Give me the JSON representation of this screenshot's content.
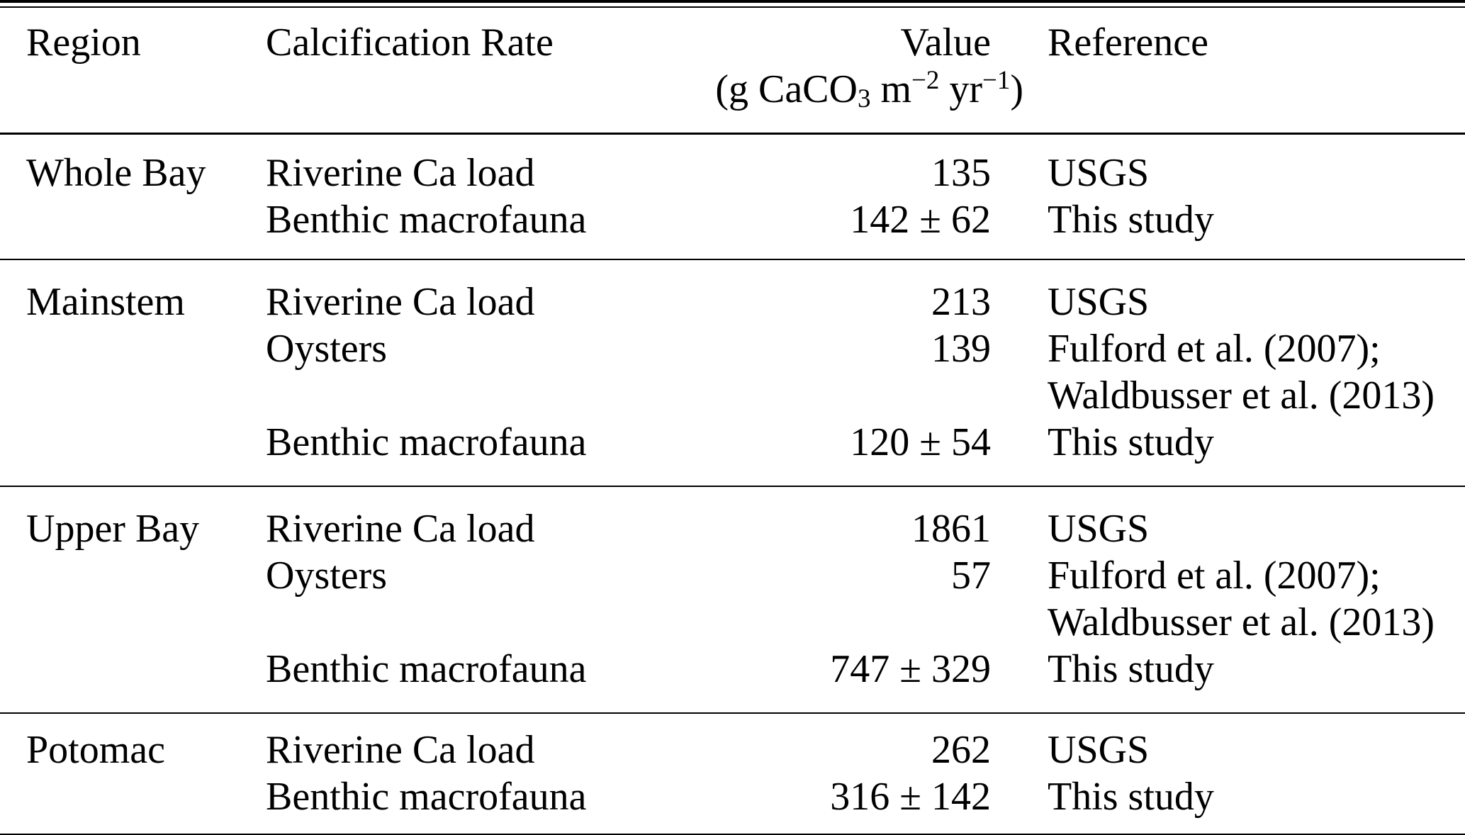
{
  "table": {
    "headers": {
      "region": "Region",
      "rate": "Calcification Rate",
      "value": "Value",
      "reference": "Reference"
    },
    "unit": {
      "open": "(g CaCO",
      "sub": "3",
      "mid1": " m",
      "sup1": "−2",
      "mid2": " yr",
      "sup2": "−1",
      "close": ")"
    },
    "groups": [
      {
        "region": "Whole Bay",
        "rows": [
          {
            "rate": "Riverine Ca load",
            "value": "135",
            "reference": "USGS"
          },
          {
            "rate": "Benthic macrofauna",
            "value": "142 ± 62",
            "reference": "This study"
          }
        ]
      },
      {
        "region": "Mainstem",
        "rows": [
          {
            "rate": "Riverine Ca load",
            "value": "213",
            "reference": "USGS"
          },
          {
            "rate": "Oysters",
            "value": "139",
            "reference": "Fulford et al. (2007);"
          },
          {
            "rate": "",
            "value": "",
            "reference": "Waldbusser et al. (2013)"
          },
          {
            "rate": "Benthic macrofauna",
            "value": "120 ± 54",
            "reference": "This study"
          }
        ]
      },
      {
        "region": "Upper Bay",
        "rows": [
          {
            "rate": "Riverine Ca load",
            "value": "1861",
            "reference": "USGS"
          },
          {
            "rate": "Oysters",
            "value": "57",
            "reference": "Fulford et al. (2007);"
          },
          {
            "rate": "",
            "value": "",
            "reference": "Waldbusser et al. (2013)"
          },
          {
            "rate": "Benthic macrofauna",
            "value": "747 ± 329",
            "reference": "This study"
          }
        ]
      },
      {
        "region": "Potomac",
        "rows": [
          {
            "rate": "Riverine Ca load",
            "value": "262",
            "reference": "USGS"
          },
          {
            "rate": "Benthic macrofauna",
            "value": "316 ± 142",
            "reference": "This study"
          }
        ]
      }
    ]
  }
}
